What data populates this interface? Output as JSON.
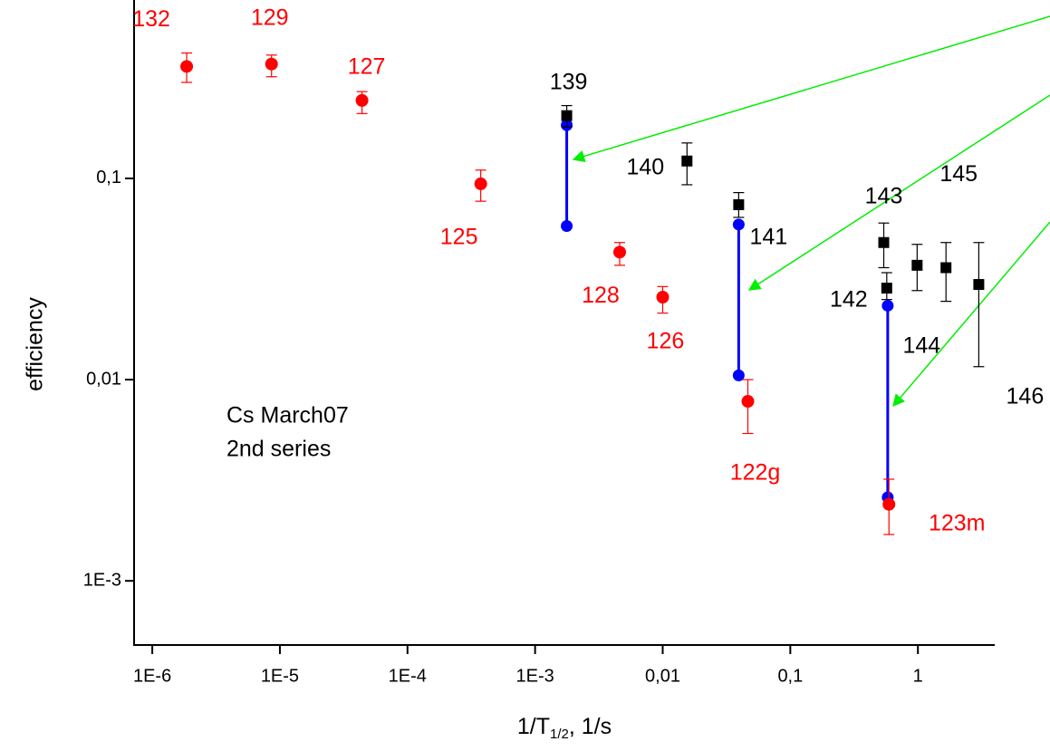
{
  "chart_data": {
    "type": "scatter",
    "log_x": true,
    "log_y": true,
    "x_label": {
      "main": "1/T",
      "sub": "1/2",
      "rest": ", 1/s"
    },
    "y_label": "efficiency",
    "annotations": [
      "Cs March07",
      "2nd series"
    ],
    "xlim": [
      7.2e-07,
      4.0
    ],
    "ylim": [
      0.00048,
      0.77
    ],
    "xticks": [
      {
        "value": 1e-06,
        "label": "1E-6"
      },
      {
        "value": 1e-05,
        "label": "1E-5"
      },
      {
        "value": 0.0001,
        "label": "1E-4"
      },
      {
        "value": 0.001,
        "label": "1E-3"
      },
      {
        "value": 0.01,
        "label": "0,01"
      },
      {
        "value": 0.1,
        "label": "0,1"
      },
      1
    ],
    "yticks": [
      {
        "value": 0.001,
        "label": "1E-3"
      },
      {
        "value": 0.01,
        "label": "0,01"
      },
      {
        "value": 0.1,
        "label": "0,1"
      }
    ],
    "series": [
      {
        "color": "#ff0000",
        "marker": "circle",
        "labels": [
          "132",
          "129",
          "127",
          "125",
          "128",
          "126",
          "122g",
          "123m"
        ],
        "x": [
          1.86e-06,
          8.6e-06,
          4.4e-05,
          0.000375,
          0.0046,
          0.01,
          0.0465,
          0.593
        ],
        "values": [
          0.36,
          0.37,
          0.244,
          0.094,
          0.043,
          0.0257,
          0.0078,
          0.0024
        ],
        "upper": [
          0.42,
          0.41,
          0.27,
          0.11,
          0.048,
          0.029,
          0.01,
          0.0032
        ],
        "lower": [
          0.3,
          0.32,
          0.21,
          0.077,
          0.037,
          0.0214,
          0.0054,
          0.0017
        ]
      },
      {
        "color": "#000000",
        "marker": "square",
        "labels": [
          "139",
          "140",
          "141",
          "143",
          "142",
          "144",
          "145",
          "146"
        ],
        "x": [
          0.00177,
          0.0155,
          0.0394,
          0.54,
          0.57,
          0.986,
          1.66,
          3.0
        ],
        "values": [
          0.205,
          0.122,
          0.074,
          0.048,
          0.0285,
          0.037,
          0.036,
          0.0297
        ],
        "upper": [
          0.23,
          0.15,
          0.085,
          0.06,
          0.034,
          0.047,
          0.048,
          0.048
        ],
        "lower": [
          0.18,
          0.093,
          0.064,
          0.036,
          0.025,
          0.0277,
          0.0245,
          0.0116
        ]
      }
    ],
    "segments": {
      "color": "#0000ff",
      "x": [
        0.00177,
        0.0394,
        0.58
      ],
      "high": [
        0.184,
        0.059,
        0.0233
      ],
      "low": [
        0.058,
        0.0105,
        0.0026
      ]
    }
  }
}
